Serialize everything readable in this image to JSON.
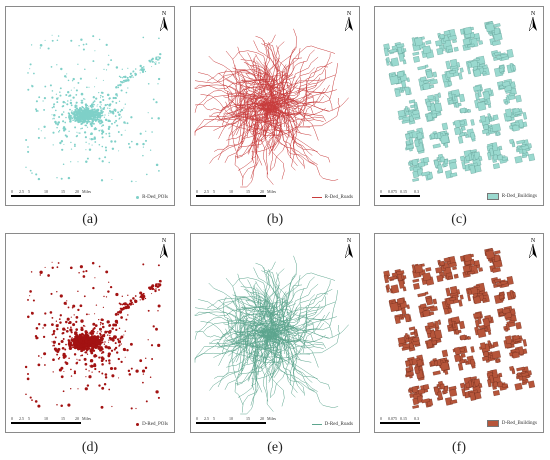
{
  "colors": {
    "rded": "#7fd0c8",
    "rdedroad": "#c83c3c",
    "dred": "#a31212",
    "dredroad": "#5ca58e",
    "bldg_c": "#9ad9cf",
    "bldg_f": "#b6553a"
  },
  "north_label": "N",
  "panels": [
    {
      "caption": "(a)",
      "legend": "R-Ded_POIs",
      "scale": {
        "ticks": [
          "0",
          "2.5",
          "5",
          "10",
          "15",
          "20"
        ],
        "unit": "Miles"
      }
    },
    {
      "caption": "(b)",
      "legend": "R-Ded_Roads",
      "scale": {
        "ticks": [
          "0",
          "2.5",
          "5",
          "10",
          "15",
          "20"
        ],
        "unit": "Miles"
      }
    },
    {
      "caption": "(c)",
      "legend": "R-Ded_Buildings",
      "scale": {
        "ticks": [
          "0",
          "0.075",
          "0.15",
          "0.3"
        ],
        "unit": ""
      }
    },
    {
      "caption": "(d)",
      "legend": "D-Red_POIs",
      "scale": {
        "ticks": [
          "0",
          "2.5",
          "5",
          "10",
          "15",
          "20"
        ],
        "unit": "Miles"
      }
    },
    {
      "caption": "(e)",
      "legend": "D-Red_Roads",
      "scale": {
        "ticks": [
          "0",
          "2.5",
          "5",
          "10",
          "15",
          "20"
        ],
        "unit": "Miles"
      }
    },
    {
      "caption": "(f)",
      "legend": "D-Red_Buildings",
      "scale": {
        "ticks": [
          "0",
          "0.075",
          "0.15",
          "0.3"
        ],
        "unit": ""
      }
    }
  ]
}
